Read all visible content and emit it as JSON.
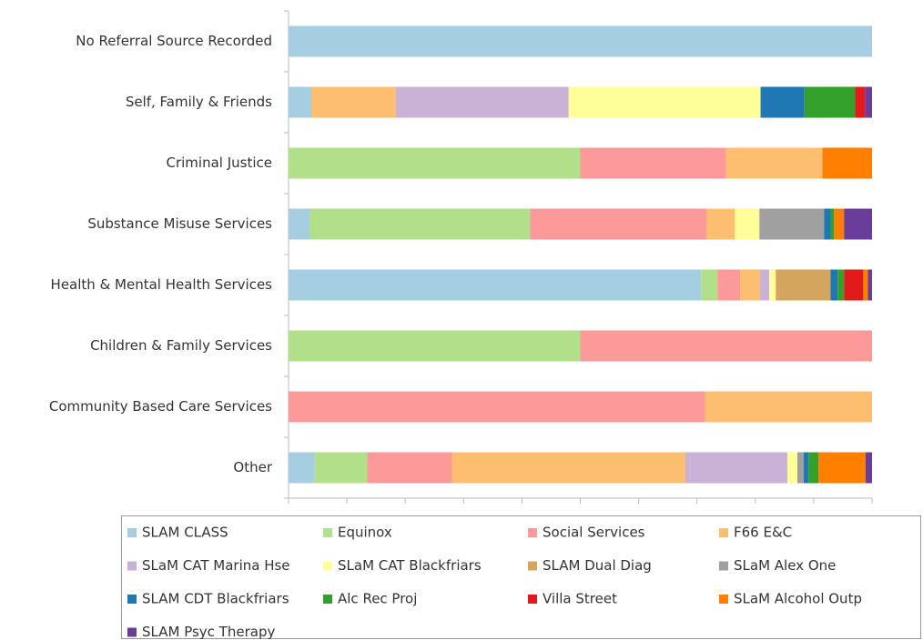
{
  "chart_data": {
    "type": "stacked_barh",
    "categories": [
      "No Referral Source Recorded",
      "Self, Family & Friends",
      "Criminal Justice",
      "Substance Misuse Services",
      "Health & Mental Health Services",
      "Children & Family Services",
      "Community Based Care Services",
      "Other"
    ],
    "xlim": [
      0,
      100
    ],
    "xticks": [
      0,
      10,
      20,
      30,
      40,
      50,
      60,
      70,
      80,
      90,
      100
    ],
    "series": [
      {
        "name": "SLAM CLASS",
        "color": "#a6cee3",
        "values": [
          100,
          3.9,
          0,
          3.6,
          70.7,
          0,
          0,
          4.5
        ]
      },
      {
        "name": "Equinox",
        "color": "#b2df8a",
        "values": [
          0,
          0,
          50,
          37.8,
          2.8,
          50,
          0,
          9.0
        ]
      },
      {
        "name": "Social Services",
        "color": "#fb9a99",
        "values": [
          0,
          0,
          25,
          30.3,
          3.9,
          50,
          71.4,
          14.5
        ]
      },
      {
        "name": "F66 E&C",
        "color": "#fdbf6f",
        "values": [
          0,
          14.5,
          16.5,
          4.8,
          3.4,
          0,
          28.6,
          40.0
        ]
      },
      {
        "name": "SLaM CAT Marina Hse",
        "color": "#cab2d6",
        "values": [
          0,
          29.6,
          0,
          0,
          1.6,
          0,
          0,
          17.5
        ]
      },
      {
        "name": "SLaM CAT Blackfriars",
        "color": "#ffff99",
        "values": [
          0,
          32.9,
          0,
          4.2,
          1.1,
          0,
          0,
          1.7
        ]
      },
      {
        "name": "SLAM Dual Diag",
        "color": "#d4a55f",
        "values": [
          0,
          0,
          0,
          0,
          9.4,
          0,
          0,
          0
        ]
      },
      {
        "name": "SLaM Alex One",
        "color": "#a0a0a0",
        "values": [
          0,
          0,
          0,
          11.1,
          0,
          0,
          0,
          1.1
        ]
      },
      {
        "name": "SLAM CDT Blackfriars",
        "color": "#1f78b4",
        "values": [
          0,
          7.5,
          0,
          1.1,
          1.2,
          0,
          0,
          0.8
        ]
      },
      {
        "name": "Alc Rec Proj",
        "color": "#33a02c",
        "values": [
          0,
          8.7,
          0,
          0.6,
          1.1,
          0,
          0,
          1.7
        ]
      },
      {
        "name": "Villa Street",
        "color": "#e31a1c",
        "values": [
          0,
          1.7,
          0,
          0,
          3.3,
          0,
          0,
          0
        ]
      },
      {
        "name": "SLaM Alcohol Outp",
        "color": "#ff7f00",
        "values": [
          0,
          0,
          8.5,
          1.7,
          0.8,
          0,
          0,
          8.1
        ]
      },
      {
        "name": "SLAM Psyc Therapy",
        "color": "#6a3d9a",
        "values": [
          0,
          1.2,
          0,
          4.8,
          0.7,
          0,
          0,
          1.1
        ]
      }
    ]
  }
}
